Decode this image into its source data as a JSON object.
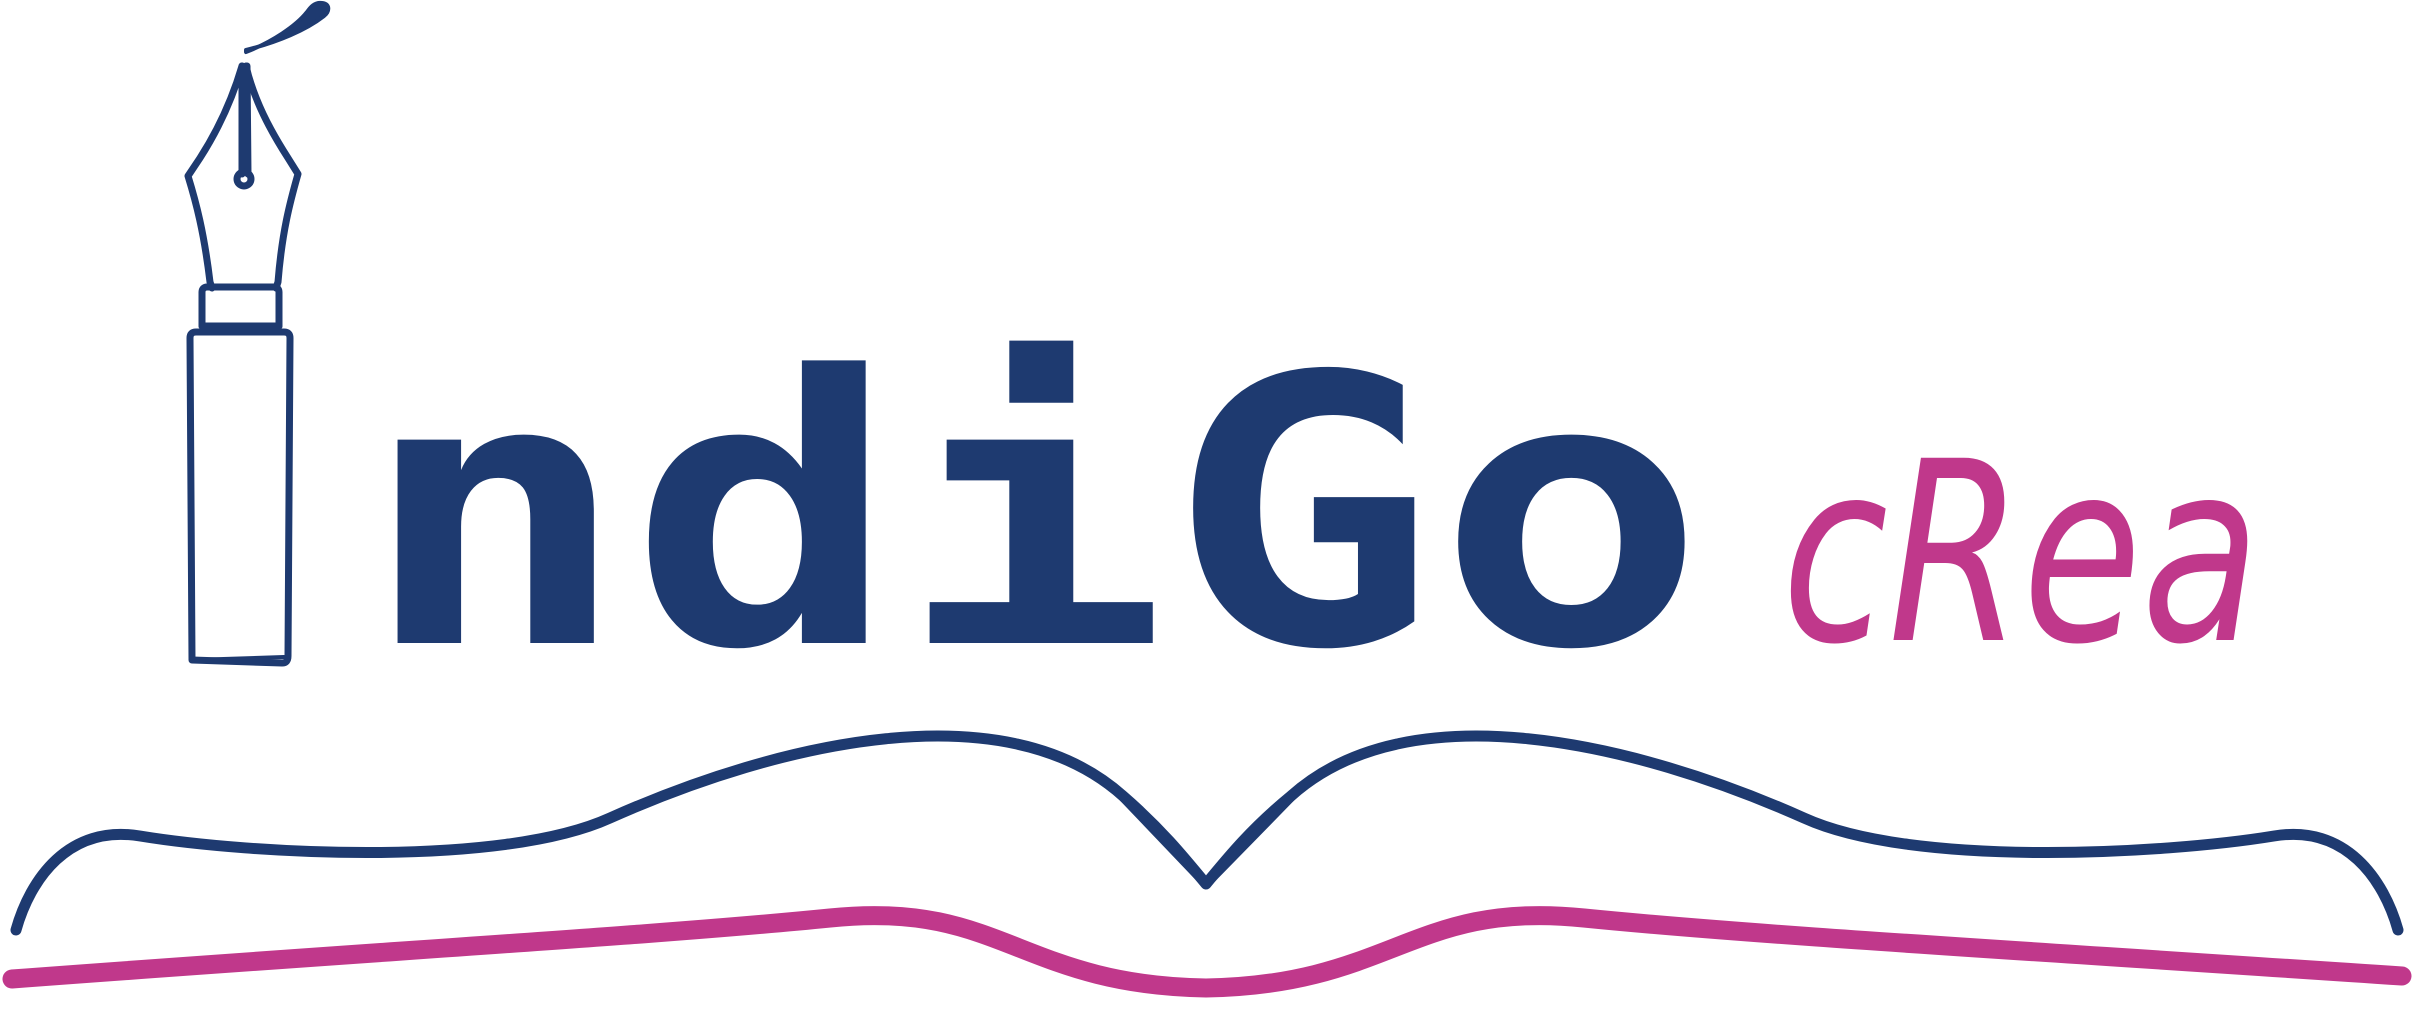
{
  "logo": {
    "main_text": "ndiGo",
    "sub_text": "cRea",
    "wordmark": "IndiGo cRea"
  },
  "colors": {
    "primary": "#1e3a70",
    "accent": "#c0388b",
    "background": "#ffffff"
  },
  "icons": {
    "pen": "fountain-pen-icon",
    "book": "open-book-icon"
  }
}
